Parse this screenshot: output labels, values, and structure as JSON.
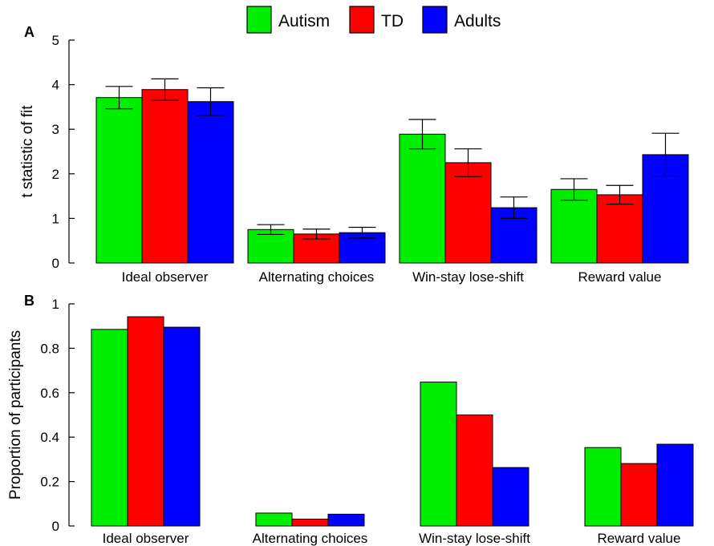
{
  "legend": {
    "entries": [
      {
        "name": "Autism",
        "color": "#00ee00"
      },
      {
        "name": "TD",
        "color": "#ff0000"
      },
      {
        "name": "Adults",
        "color": "#0000ff"
      }
    ],
    "placement": "top-center"
  },
  "chart_data": [
    {
      "type": "bar",
      "panel_label": "A",
      "ylabel": "t statistic of fit",
      "xlabel": "",
      "ylim": [
        0,
        5
      ],
      "yticks": [
        "0",
        "1",
        "2",
        "3",
        "4",
        "5"
      ],
      "grid": false,
      "categories": [
        "Ideal observer",
        "Alternating choices",
        "Win-stay lose-shift",
        "Reward value"
      ],
      "series": [
        {
          "name": "Autism",
          "color": "#00ee00",
          "values": [
            3.71,
            0.75,
            2.89,
            1.65
          ],
          "errors": [
            0.25,
            0.11,
            0.33,
            0.24
          ]
        },
        {
          "name": "TD",
          "color": "#ff0000",
          "values": [
            3.89,
            0.65,
            2.25,
            1.53
          ],
          "errors": [
            0.24,
            0.11,
            0.31,
            0.21
          ]
        },
        {
          "name": "Adults",
          "color": "#0000ff",
          "values": [
            3.62,
            0.68,
            1.24,
            2.43
          ],
          "errors": [
            0.31,
            0.12,
            0.24,
            0.48
          ]
        }
      ]
    },
    {
      "type": "bar",
      "panel_label": "B",
      "ylabel": "Proportion of participants",
      "xlabel": "",
      "ylim": [
        0,
        1
      ],
      "yticks": [
        "0",
        "0.2",
        "0.4",
        "0.6",
        "0.8",
        "1"
      ],
      "grid": false,
      "categories": [
        "Ideal observer",
        "Alternating choices",
        "Win-stay lose-shift",
        "Reward value"
      ],
      "series": [
        {
          "name": "Autism",
          "color": "#00ee00",
          "values": [
            0.885,
            0.058,
            0.648,
            0.353
          ]
        },
        {
          "name": "TD",
          "color": "#ff0000",
          "values": [
            0.942,
            0.031,
            0.5,
            0.281
          ]
        },
        {
          "name": "Adults",
          "color": "#0000ff",
          "values": [
            0.895,
            0.053,
            0.263,
            0.368
          ]
        }
      ]
    }
  ]
}
